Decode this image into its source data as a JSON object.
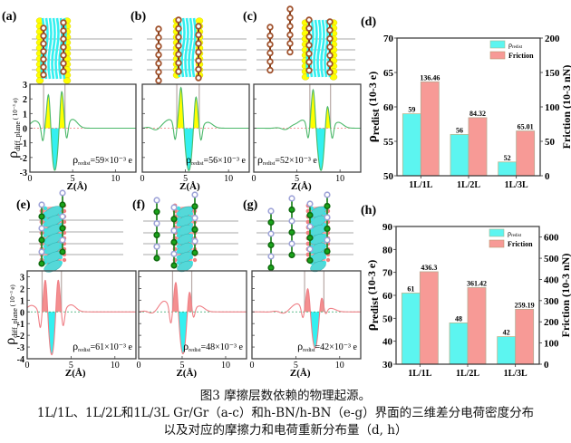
{
  "figure": {
    "caption": {
      "line1": "图3 摩擦层数依赖的物理起源。",
      "line2": "1L/1L、1L/2L和1L/3L Gr/Gr（a-c）和h-BN/h-BN（e-g）界面的三维差分电荷密度分布",
      "line3": "以及对应的摩擦力和电荷重新分布量（d, h）"
    },
    "colors": {
      "cyan": "#33f0f0",
      "yellow": "#ffff00",
      "salmon": "#f48f8f",
      "green_curve": "#4cb86a",
      "pink_curve": "#ef7f86",
      "carbon": "#a0522d",
      "boron": "#9ea3d8",
      "nitrogen": "#1aa51a"
    }
  },
  "profiles": [
    {
      "panel": "(a)",
      "material": "Gr/Gr",
      "config": "1L/1L",
      "ylabel": "ρdiff_plane ( 10⁻³ e)",
      "yticks": [
        "3",
        "2",
        "1",
        "0",
        "-1",
        "-2",
        "-3"
      ],
      "ylim": [
        -3,
        3
      ],
      "xlabel": "Z(Å)",
      "xticks": [
        "0",
        "5",
        "10"
      ],
      "annotation": "ρredist=59×10⁻³ e",
      "annotation_main": "ρ",
      "annotation_sub": "redist",
      "annotation_val": "=59×10⁻³ e",
      "interface": [
        1.6,
        4.1
      ],
      "pos_peaks": [
        [
          2.2,
          2.75
        ],
        [
          3.7,
          2.75
        ]
      ],
      "neg_well": [
        2.9,
        -2.9
      ],
      "dips": [
        [
          1.5,
          -1.0
        ],
        [
          4.3,
          -1.0
        ]
      ],
      "bumps": [
        [
          0.6,
          0.5
        ],
        [
          5.0,
          0.6
        ]
      ]
    },
    {
      "panel": "(b)",
      "material": "Gr/Gr",
      "config": "1L/2L",
      "annotation_main": "ρ",
      "annotation_sub": "redist",
      "annotation_val": "=56×10⁻³ e",
      "xlabel": "Z(Å)",
      "xticks": [
        "0",
        "5",
        "10"
      ],
      "interface": [
        4.0,
        6.6
      ],
      "pos_peaks": [
        [
          4.5,
          2.9
        ],
        [
          6.2,
          2.4
        ]
      ],
      "neg_well": [
        5.4,
        -2.9
      ],
      "dips": [
        [
          3.8,
          -1.1
        ],
        [
          6.8,
          -1.0
        ]
      ],
      "bumps": [
        [
          3.2,
          0.6
        ],
        [
          7.6,
          0.4
        ]
      ]
    },
    {
      "panel": "(c)",
      "material": "Gr/Gr",
      "config": "1L/3L",
      "annotation_main": "ρ",
      "annotation_sub": "redist",
      "annotation_val": "=52×10⁻³ e",
      "xlabel": "Z(Å)",
      "xticks": [
        "0",
        "5",
        "10"
      ],
      "interface": [
        6.5,
        8.9
      ],
      "pos_peaks": [
        [
          6.9,
          2.75
        ],
        [
          8.5,
          1.9
        ]
      ],
      "neg_well": [
        7.8,
        -2.9
      ],
      "dips": [
        [
          6.3,
          -1.0
        ],
        [
          9.1,
          -0.9
        ]
      ],
      "bumps": [
        [
          5.6,
          0.6
        ],
        [
          9.8,
          0.4
        ]
      ]
    },
    {
      "panel": "(e)",
      "material": "h-BN/h-BN",
      "config": "1L/1L",
      "ylabel": "ρdiff_plane ( 10⁻³ e)",
      "yticks": [
        "3",
        "2",
        "1",
        "0",
        "-1",
        "-2",
        "-3",
        "-4"
      ],
      "ylim": [
        -4,
        3.5
      ],
      "annotation_main": "ρ",
      "annotation_sub": "redist",
      "annotation_val": "=61×10⁻³ e",
      "xlabel": "Z(Å)",
      "xticks": [
        "0",
        "5",
        "10"
      ],
      "interface": [
        1.7,
        3.9
      ],
      "pos_peaks": [
        [
          2.1,
          3.3
        ],
        [
          3.5,
          3.3
        ]
      ],
      "neg_well": [
        2.8,
        -3.7
      ],
      "dips": [
        [
          1.5,
          -1.5
        ],
        [
          4.1,
          -1.4
        ]
      ],
      "bumps": [
        [
          0.5,
          0.55
        ],
        [
          5.0,
          0.6
        ]
      ]
    },
    {
      "panel": "(f)",
      "material": "h-BN/h-BN",
      "config": "1L/2L",
      "annotation_main": "ρ",
      "annotation_sub": "redist",
      "annotation_val": "=48×10⁻³ e",
      "xlabel": "Z(Å)",
      "xticks": [
        "0",
        "5",
        "10"
      ],
      "interface": [
        3.9,
        6.1
      ],
      "pos_peaks": [
        [
          4.3,
          2.8
        ],
        [
          5.8,
          2.2
        ]
      ],
      "neg_well": [
        5.1,
        -3.6
      ],
      "dips": [
        [
          3.7,
          -1.4
        ],
        [
          6.3,
          -0.8
        ]
      ],
      "bumps": [
        [
          3.0,
          0.9
        ],
        [
          7.0,
          0.5
        ]
      ]
    },
    {
      "panel": "(g)",
      "material": "h-BN/h-BN",
      "config": "1L/3L",
      "annotation_main": "ρ",
      "annotation_sub": "redist",
      "annotation_val": "=42×10⁻³ e",
      "xlabel": "Z(Å)",
      "xticks": [
        "0",
        "5",
        "10"
      ],
      "interface": [
        6.0,
        8.2
      ],
      "pos_peaks": [
        [
          6.4,
          2.2
        ],
        [
          7.9,
          1.6
        ]
      ],
      "neg_well": [
        7.2,
        -3.1
      ],
      "dips": [
        [
          5.8,
          -0.9
        ],
        [
          8.4,
          -0.4
        ]
      ],
      "bumps": [
        [
          5.2,
          0.7
        ],
        [
          9.0,
          0.3
        ]
      ]
    }
  ],
  "chart_data": [
    {
      "panel": "(d)",
      "type": "bar",
      "categories": [
        "1L/1L",
        "1L/2L",
        "1L/3L"
      ],
      "series": [
        {
          "name": "ρredist",
          "legend_main": "ρ",
          "legend_sub": "redist",
          "axis": "left",
          "values": [
            59,
            56,
            52
          ],
          "labels": [
            "59",
            "56",
            "52"
          ],
          "color": "#5cf5f0"
        },
        {
          "name": "Friction",
          "legend_main": "Friction",
          "legend_sub": "",
          "axis": "right",
          "values": [
            136.46,
            84.32,
            65.01
          ],
          "labels": [
            "136.46",
            "84.32",
            "65.01"
          ],
          "color": "#f79a96"
        }
      ],
      "ylabel_left": "ρredist (10-3 e)",
      "ylabel_left_main": "ρ",
      "ylabel_left_sub": "redist",
      "ylabel_left_rest": " (10-3 e)",
      "ylabel_right": "Friction (10-3 nN)",
      "ylim_left": [
        50,
        70
      ],
      "yticks_left": [
        50,
        55,
        60,
        65,
        70
      ],
      "ylim_right": [
        0,
        200
      ],
      "yticks_right": [
        0,
        50,
        100,
        150,
        200
      ],
      "legend": "top-right"
    },
    {
      "panel": "(h)",
      "type": "bar",
      "categories": [
        "1L/1L",
        "1L/2L",
        "1L/3L"
      ],
      "series": [
        {
          "name": "ρredist",
          "legend_main": "ρ",
          "legend_sub": "redist",
          "axis": "left",
          "values": [
            61,
            48,
            42
          ],
          "labels": [
            "61",
            "48",
            "42"
          ],
          "color": "#5cf5f0"
        },
        {
          "name": "Friction",
          "legend_main": "Friction",
          "legend_sub": "",
          "axis": "right",
          "values": [
            436.3,
            361.42,
            259.19
          ],
          "labels": [
            "436.3",
            "361.42",
            "259.19"
          ],
          "color": "#f79a96"
        }
      ],
      "ylabel_left": "ρredist (10-3 e)",
      "ylabel_left_main": "ρ",
      "ylabel_left_sub": "redist",
      "ylabel_left_rest": " (10-3 e)",
      "ylabel_right": "Friction (10-3 nN)",
      "ylim_left": [
        30,
        90
      ],
      "yticks_left": [
        30,
        40,
        50,
        60,
        70,
        80,
        90
      ],
      "ylim_right": [
        0,
        650
      ],
      "yticks_right": [
        0,
        100,
        200,
        300,
        400,
        500,
        600
      ],
      "legend": "top-right"
    }
  ]
}
